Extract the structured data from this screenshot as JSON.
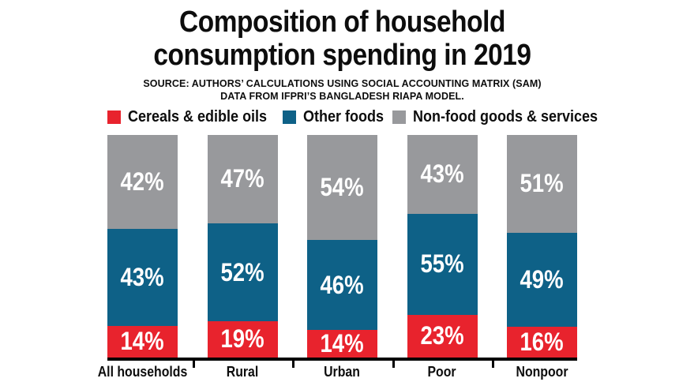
{
  "title": {
    "line1": "Composition of household",
    "line2": "consumption spending in 2019"
  },
  "source": {
    "line1": "SOURCE: AUTHORS’ CALCULATIONS USING SOCIAL ACCOUNTING MATRIX (SAM)",
    "line2": "DATA FROM IFPRI’S BANGLADESH RIAPA MODEL."
  },
  "colors": {
    "cereals_red": "#e8232d",
    "other_foods_blue": "#0e6187",
    "nonfood_gray": "#98999c",
    "axis_black": "#000000",
    "text_black": "#0d0d0d",
    "bar_label_white": "#ffffff"
  },
  "chart_data": {
    "type": "bar",
    "stacked": true,
    "orientation": "vertical",
    "title": "Composition of household consumption spending in 2019",
    "categories": [
      "All households",
      "Rural",
      "Urban",
      "Poor",
      "Nonpoor"
    ],
    "series": [
      {
        "name": "Cereals & edible oils",
        "color": "#e8232d",
        "values": [
          14,
          19,
          14,
          23,
          16
        ]
      },
      {
        "name": "Other foods",
        "color": "#0e6187",
        "values": [
          43,
          52,
          46,
          55,
          49
        ]
      },
      {
        "name": "Non-food goods & services",
        "color": "#98999c",
        "values": [
          42,
          47,
          54,
          43,
          51
        ]
      }
    ],
    "stack_order_bottom_to_top": [
      "Cereals & edible oils",
      "Other foods",
      "Non-food goods & services"
    ],
    "value_suffix": "%",
    "bar_labels": "inside-center-white",
    "legend_position": "top",
    "grid": false,
    "each_bar_scaled_to_full_height": true
  }
}
